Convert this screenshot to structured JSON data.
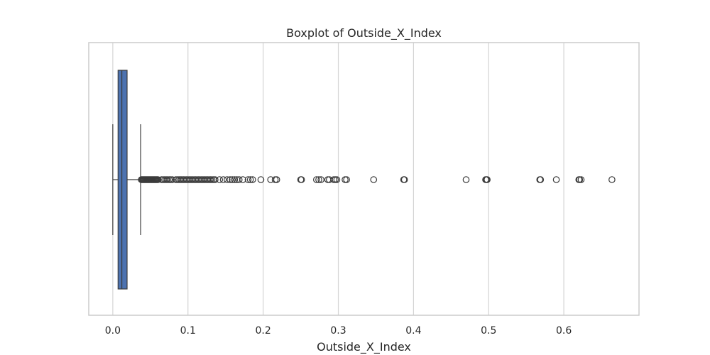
{
  "chart_data": {
    "type": "boxplot",
    "title": "Boxplot of Outside_X_Index",
    "xlabel": "Outside_X_Index",
    "ylabel": "",
    "xlim": [
      -0.032,
      0.7
    ],
    "xticks": [
      0.0,
      0.1,
      0.2,
      0.3,
      0.4,
      0.5,
      0.6
    ],
    "xtick_labels": [
      "0.0",
      "0.1",
      "0.2",
      "0.3",
      "0.4",
      "0.5",
      "0.6"
    ],
    "grid": true,
    "orientation": "horizontal",
    "box_color": "#4c72b0",
    "stats": {
      "whisker_low": 0.0,
      "q1": 0.007,
      "median": 0.012,
      "q3": 0.019,
      "whisker_high": 0.037
    },
    "outliers": [
      0.038,
      0.039,
      0.04,
      0.041,
      0.042,
      0.043,
      0.044,
      0.045,
      0.046,
      0.047,
      0.048,
      0.049,
      0.05,
      0.051,
      0.052,
      0.053,
      0.054,
      0.055,
      0.056,
      0.057,
      0.058,
      0.059,
      0.06,
      0.065,
      0.067,
      0.069,
      0.071,
      0.073,
      0.075,
      0.077,
      0.079,
      0.084,
      0.086,
      0.088,
      0.09,
      0.092,
      0.094,
      0.096,
      0.098,
      0.1,
      0.102,
      0.104,
      0.106,
      0.108,
      0.11,
      0.112,
      0.114,
      0.116,
      0.118,
      0.12,
      0.122,
      0.124,
      0.126,
      0.128,
      0.13,
      0.132,
      0.134,
      0.136,
      0.142,
      0.147,
      0.152,
      0.156,
      0.159,
      0.162,
      0.165,
      0.168,
      0.173,
      0.18,
      0.183,
      0.186,
      0.197,
      0.21,
      0.216,
      0.218,
      0.25,
      0.251,
      0.271,
      0.274,
      0.277,
      0.286,
      0.288,
      0.294,
      0.296,
      0.298,
      0.309,
      0.311,
      0.347,
      0.387,
      0.388,
      0.47,
      0.496,
      0.497,
      0.498,
      0.568,
      0.569,
      0.59,
      0.62,
      0.621,
      0.623,
      0.664
    ]
  }
}
